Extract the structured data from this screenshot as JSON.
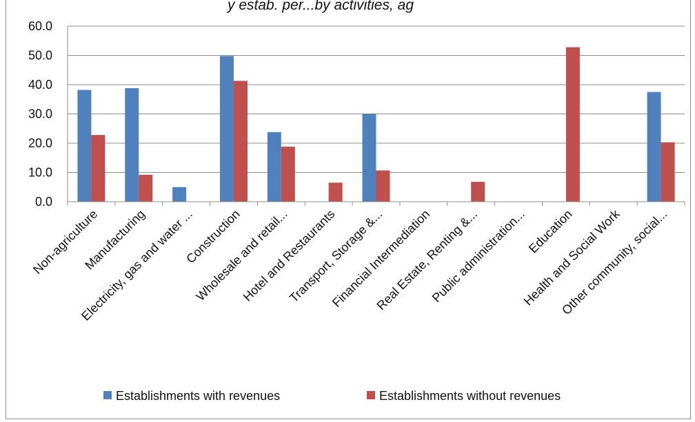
{
  "title_fragment": "y estab. per...by activities, ag",
  "chart_data": {
    "type": "bar",
    "categories": [
      "Non-agriculture",
      "Manufacturing",
      "Electricity, gas and water ...",
      "Construction",
      "Wholesale and retail...",
      "Hotel and Restaurants",
      "Transport, Storage &...",
      "Financial Intermediation",
      "Real Estate, Renting &...",
      "Public administration...",
      "Education",
      "Health and Social Work",
      "Other community, social..."
    ],
    "series": [
      {
        "name": "Establishments with revenues",
        "color": "#4f81bd",
        "values": [
          38.2,
          38.8,
          5.0,
          49.8,
          23.8,
          0,
          30.1,
          0,
          0,
          0,
          0,
          0,
          37.5
        ]
      },
      {
        "name": "Establishments without revenues",
        "color": "#c0504d",
        "values": [
          22.8,
          9.2,
          0,
          41.3,
          18.8,
          6.5,
          10.7,
          0,
          6.8,
          0,
          52.8,
          0,
          20.3
        ]
      }
    ],
    "ylim": [
      0,
      60
    ],
    "yticks": [
      "0.0",
      "10.0",
      "20.0",
      "30.0",
      "40.0",
      "50.0",
      "60.0"
    ],
    "grid": true,
    "legend_position": "bottom"
  }
}
